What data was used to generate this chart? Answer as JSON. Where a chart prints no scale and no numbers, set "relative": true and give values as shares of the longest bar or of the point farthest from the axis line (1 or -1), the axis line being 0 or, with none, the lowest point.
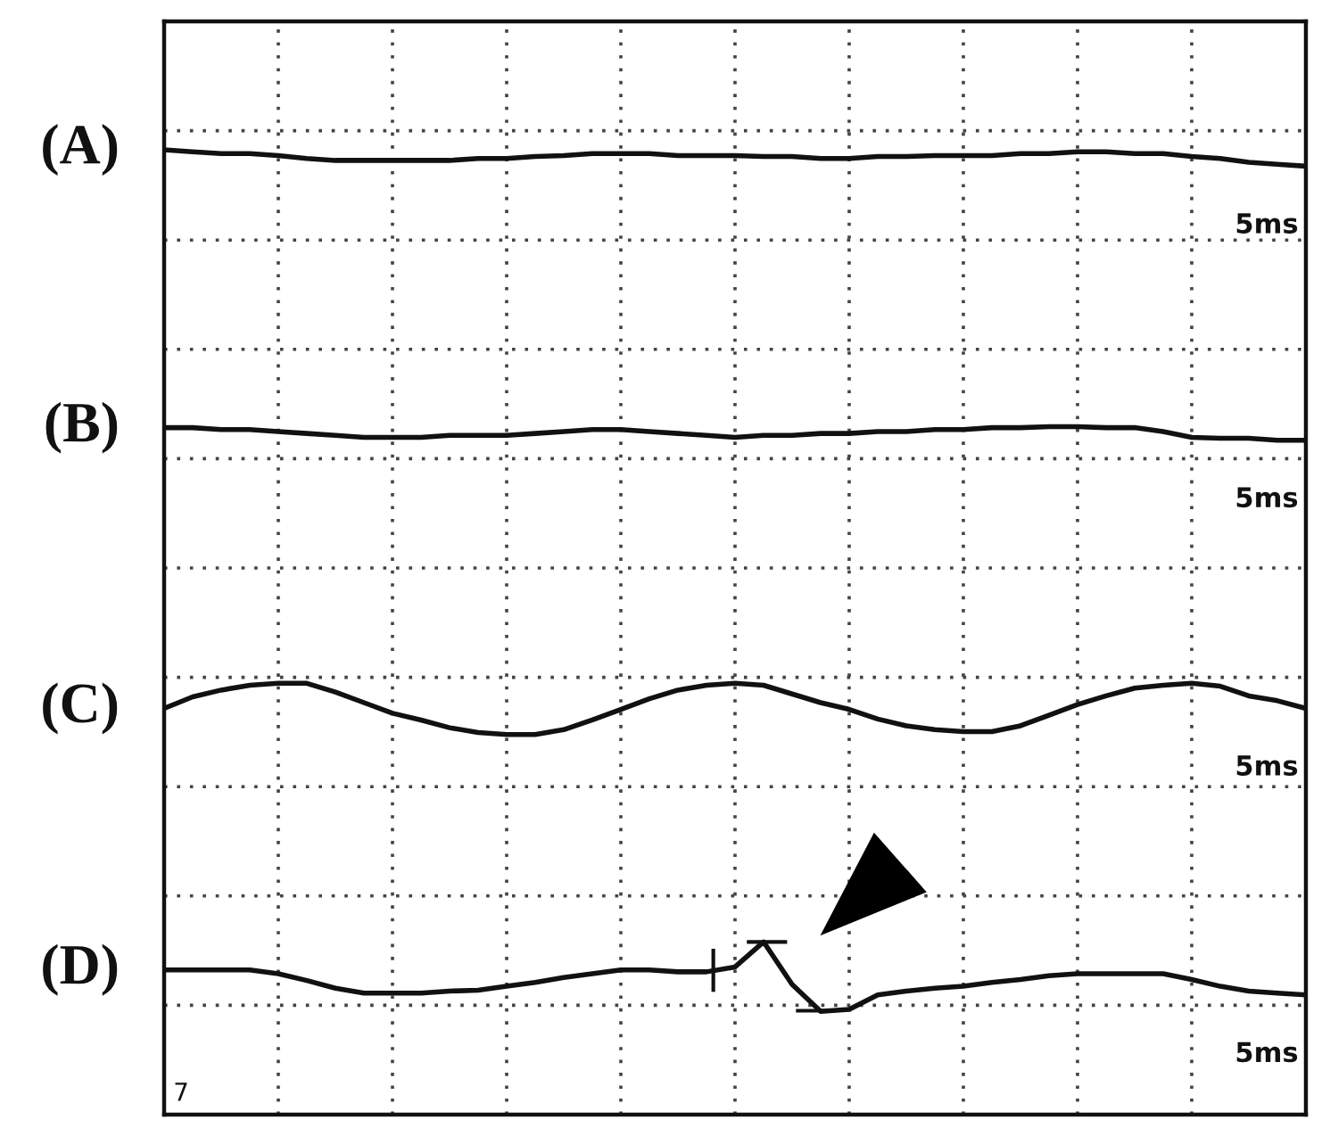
{
  "chart_data": {
    "type": "line",
    "relative": true,
    "categories": [
      null,
      null,
      null,
      null,
      null,
      null,
      null,
      null,
      null,
      null,
      null,
      null,
      null,
      null,
      null,
      null,
      null,
      null,
      null,
      null,
      null,
      null,
      null,
      null,
      null,
      null,
      null,
      null,
      null,
      null,
      null,
      null,
      null,
      null,
      null,
      null,
      null,
      null,
      null,
      null,
      null
    ],
    "series": [
      {
        "name": "(A)",
        "color": "#111111",
        "values": [
          1.0,
          0.998,
          0.996,
          0.996,
          0.994,
          0.991,
          0.989,
          0.989,
          0.989,
          0.989,
          0.989,
          0.991,
          0.991,
          0.993,
          0.994,
          0.996,
          0.996,
          0.996,
          0.994,
          0.994,
          0.994,
          0.993,
          0.993,
          0.991,
          0.991,
          0.993,
          0.993,
          0.994,
          0.994,
          0.994,
          0.996,
          0.996,
          0.998,
          0.998,
          0.996,
          0.996,
          0.993,
          0.991,
          0.987,
          0.985,
          0.983
        ]
      },
      {
        "name": "(B)",
        "color": "#111111",
        "values": [
          0.712,
          0.712,
          0.71,
          0.71,
          0.708,
          0.706,
          0.704,
          0.702,
          0.702,
          0.702,
          0.704,
          0.704,
          0.704,
          0.706,
          0.708,
          0.71,
          0.71,
          0.708,
          0.706,
          0.704,
          0.702,
          0.704,
          0.704,
          0.706,
          0.706,
          0.708,
          0.708,
          0.71,
          0.71,
          0.712,
          0.712,
          0.713,
          0.713,
          0.712,
          0.712,
          0.708,
          0.702,
          0.701,
          0.701,
          0.699,
          0.699
        ]
      },
      {
        "name": "(C)",
        "color": "#111111",
        "values": [
          0.421,
          0.433,
          0.44,
          0.445,
          0.447,
          0.447,
          0.438,
          0.427,
          0.416,
          0.409,
          0.401,
          0.396,
          0.394,
          0.394,
          0.399,
          0.409,
          0.42,
          0.431,
          0.44,
          0.445,
          0.447,
          0.445,
          0.436,
          0.427,
          0.42,
          0.41,
          0.403,
          0.399,
          0.397,
          0.397,
          0.403,
          0.414,
          0.425,
          0.434,
          0.442,
          0.445,
          0.447,
          0.444,
          0.434,
          0.429,
          0.421
        ]
      },
      {
        "name": "(D)",
        "color": "#111111",
        "values": [
          0.15,
          0.15,
          0.15,
          0.15,
          0.146,
          0.139,
          0.131,
          0.126,
          0.126,
          0.126,
          0.128,
          0.129,
          0.133,
          0.137,
          0.142,
          0.146,
          0.15,
          0.15,
          0.148,
          0.148,
          0.153,
          0.179,
          0.135,
          0.107,
          0.109,
          0.124,
          0.128,
          0.131,
          0.133,
          0.137,
          0.14,
          0.144,
          0.146,
          0.146,
          0.146,
          0.146,
          0.14,
          0.133,
          0.128,
          0.126,
          0.124
        ]
      }
    ],
    "annotations": [
      "5ms",
      "5ms",
      "5ms",
      "5ms",
      "7"
    ],
    "grid": true
  }
}
